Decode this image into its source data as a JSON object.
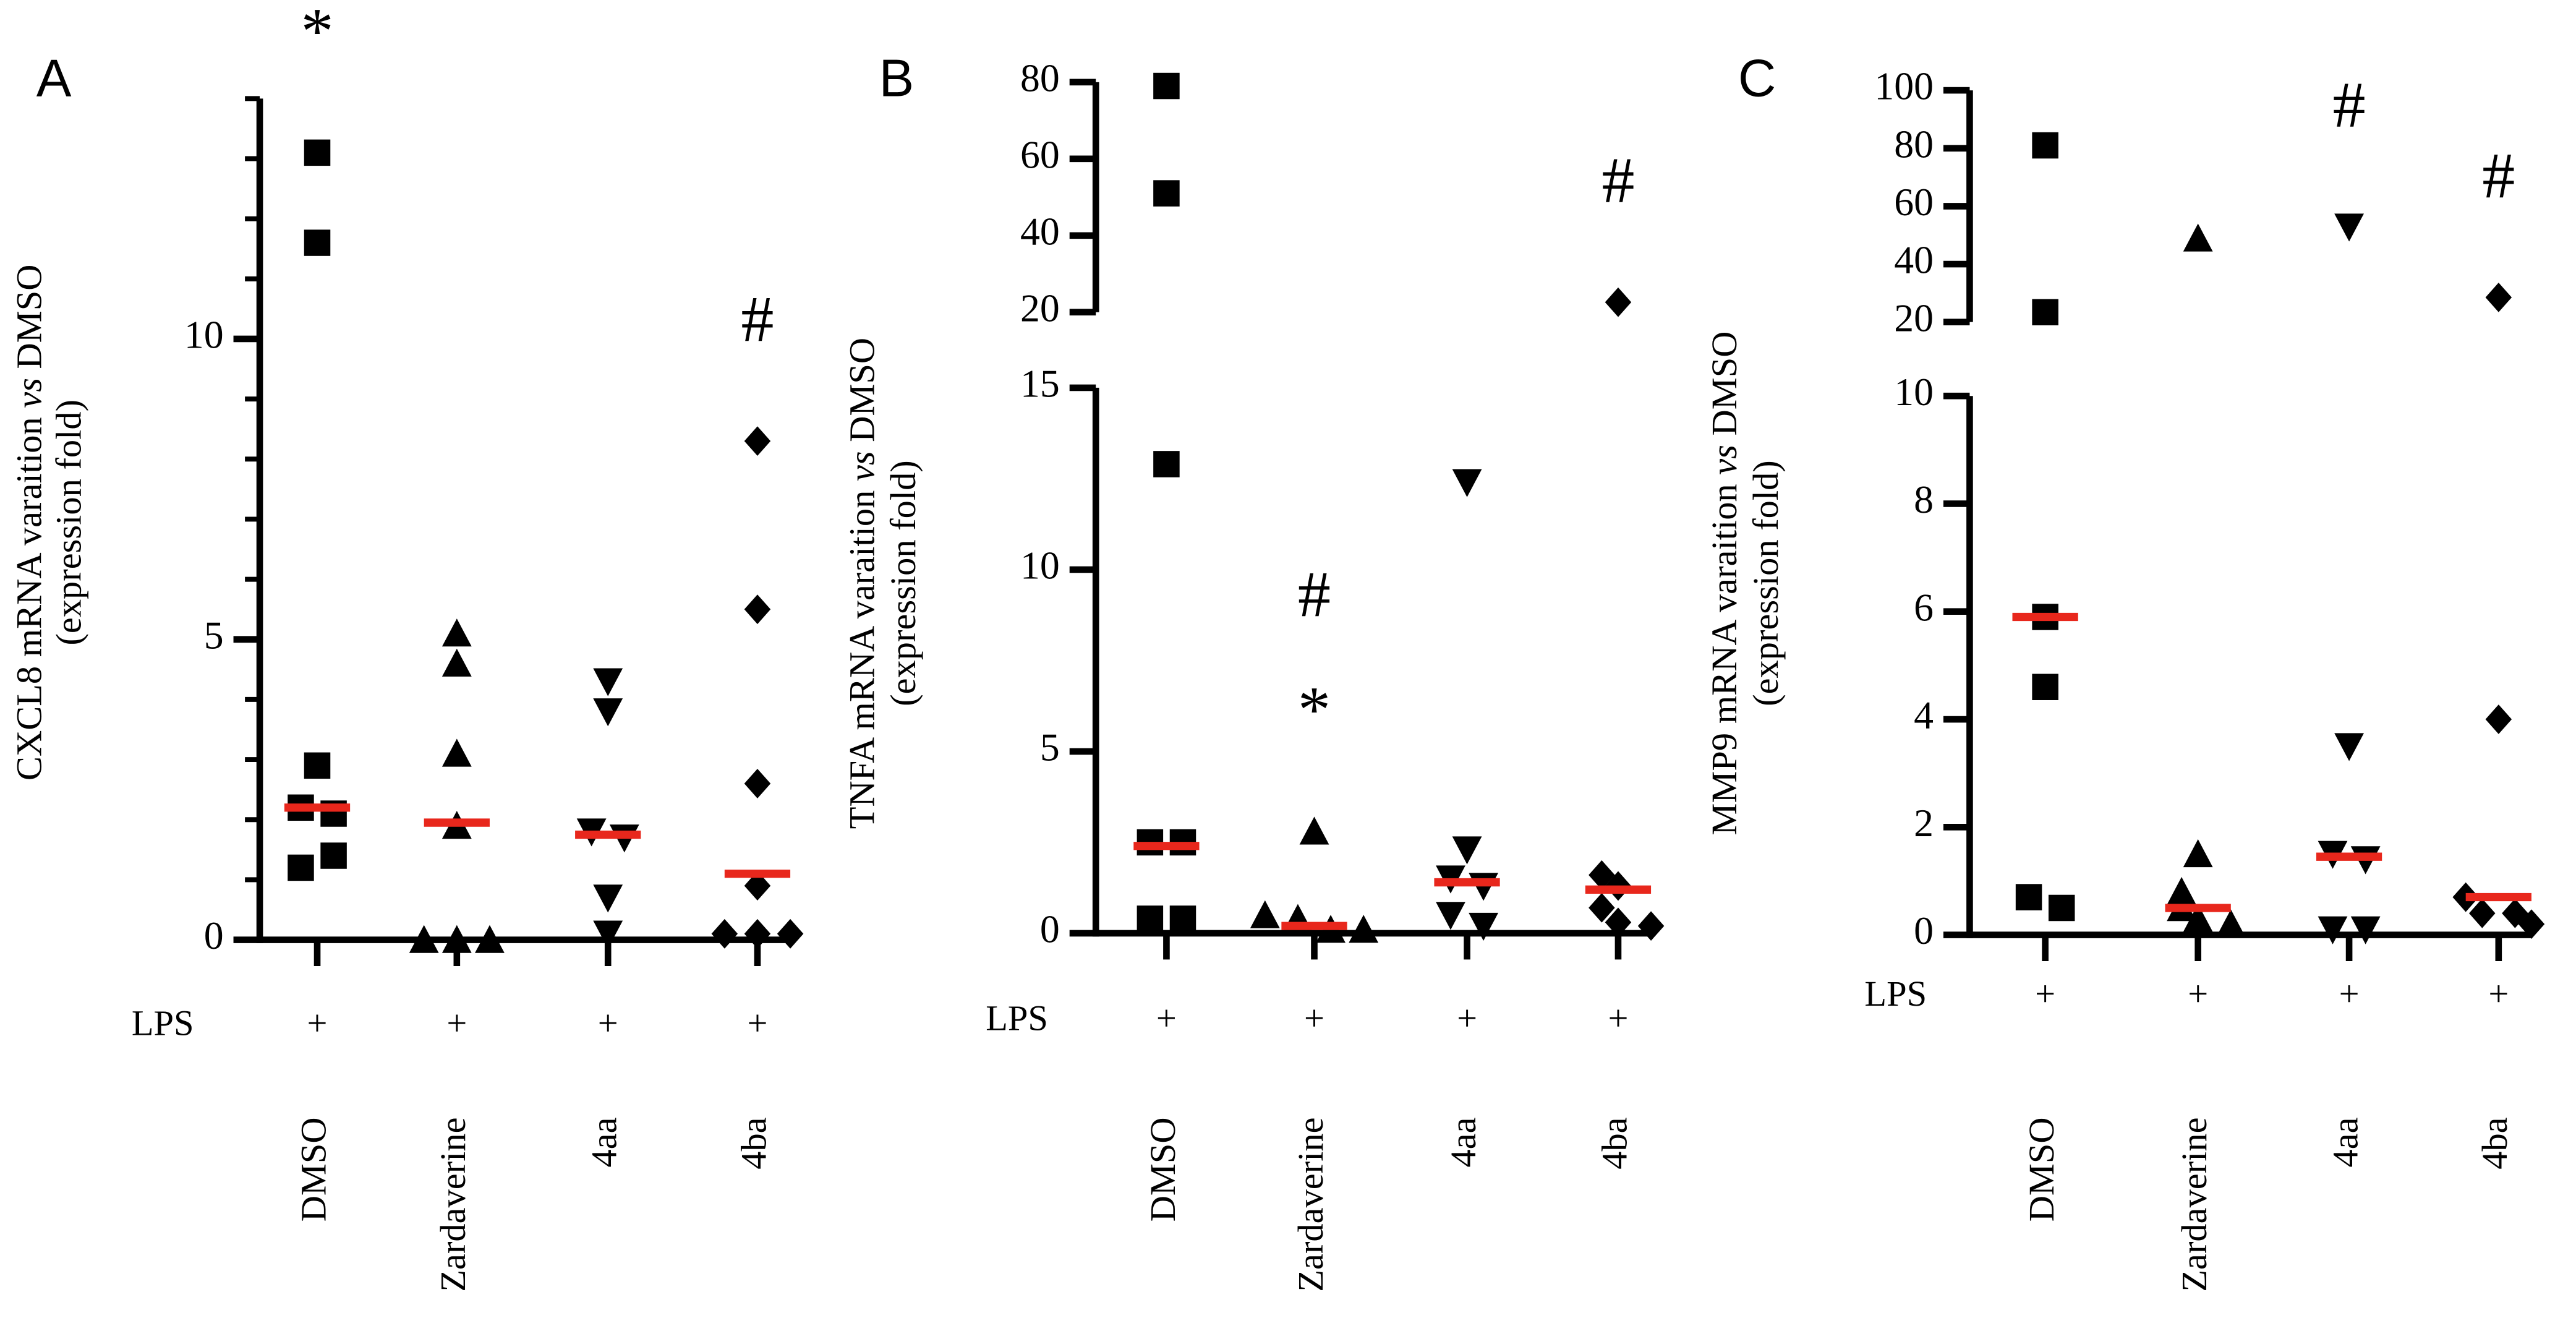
{
  "chart_data": [
    {
      "type": "dot",
      "panel": "A",
      "ylabel": [
        "CXCL8 mRNA varaition ",
        "vs",
        " DMSO"
      ],
      "ylabel2": "(expression fold)",
      "categories": [
        "DMSO",
        "Zardaverine",
        "4aa",
        "4ba"
      ],
      "row_label": "LPS",
      "row_values": [
        "+",
        "+",
        "+",
        "+"
      ],
      "markers": [
        "square",
        "triangle-up",
        "triangle-down",
        "diamond"
      ],
      "color": "#000000",
      "median_color": "#e8271c",
      "values": [
        [
          13.1,
          11.6,
          2.9,
          2.2,
          2.1,
          1.2,
          1.4
        ],
        [
          5.1,
          4.6,
          3.1,
          1.9,
          0,
          0,
          0
        ],
        [
          4.3,
          3.8,
          1.8,
          1.7,
          0.7,
          0.1
        ],
        [
          8.3,
          5.5,
          2.6,
          0.9,
          0.1,
          0.1,
          0.1
        ]
      ],
      "medians": [
        2.2,
        1.95,
        1.75,
        1.1
      ],
      "ylim": [
        0,
        14
      ],
      "yticks": [
        0,
        5,
        10
      ],
      "yminor": 1,
      "annotations": [
        [
          "*"
        ],
        [],
        [],
        [
          "#"
        ]
      ]
    },
    {
      "type": "dot",
      "panel": "B",
      "ylabel": [
        "TNFA mRNA varaition ",
        "vs",
        " DMSO"
      ],
      "ylabel2": "(expression fold)",
      "categories": [
        "DMSO",
        "Zardaverine",
        "4aa",
        "4ba"
      ],
      "row_label": "LPS",
      "row_values": [
        "+",
        "+",
        "+",
        "+"
      ],
      "markers": [
        "square",
        "triangle-up",
        "triangle-down",
        "diamond"
      ],
      "color": "#000000",
      "median_color": "#e8271c",
      "values": [
        [
          79,
          51,
          12.9,
          2.5,
          2.5,
          0.4,
          0.4
        ],
        [
          2.8,
          0.5,
          0.4,
          0.1,
          0.1
        ],
        [
          12.4,
          2.3,
          1.5,
          1.3,
          0.5,
          0.2
        ],
        [
          22.6,
          1.6,
          1.3,
          0.7,
          0.3,
          0.2
        ]
      ],
      "medians": [
        2.4,
        0.2,
        1.4,
        1.2
      ],
      "ylim": [
        0,
        15
      ],
      "yticks": [
        0,
        5,
        10,
        15
      ],
      "ylim_upper": [
        20,
        80
      ],
      "yticks_upper": [
        20,
        40,
        60,
        80
      ],
      "annotations": [
        [],
        [
          "*",
          "#"
        ],
        [],
        [
          "#"
        ]
      ]
    },
    {
      "type": "dot",
      "panel": "C",
      "ylabel": [
        "MMP9 mRNA varaition ",
        "vs",
        " DMSO"
      ],
      "ylabel2": "(expression fold)",
      "categories": [
        "DMSO",
        "Zardaverine",
        "4aa",
        "4ba"
      ],
      "row_label": "LPS",
      "row_values": [
        "+",
        "+",
        "+",
        "+"
      ],
      "markers": [
        "square",
        "triangle-up",
        "triangle-down",
        "diamond"
      ],
      "color": "#000000",
      "median_color": "#e8271c",
      "values": [
        [
          81,
          23.4,
          5.9,
          4.6,
          0.7,
          0.5
        ],
        [
          48.9,
          1.5,
          0.8,
          0.5,
          0.3,
          0.2
        ],
        [
          52.9,
          3.5,
          1.5,
          1.4,
          0.1,
          0.1
        ],
        [
          28.5,
          4.0,
          0.7,
          0.4,
          0.4,
          0.2
        ]
      ],
      "medians": [
        5.9,
        0.5,
        1.45,
        0.7
      ],
      "ylim": [
        0,
        10
      ],
      "yticks": [
        0,
        2,
        4,
        6,
        8,
        10
      ],
      "ylim_upper": [
        20,
        100
      ],
      "yticks_upper": [
        20,
        40,
        60,
        80,
        100
      ],
      "annotations": [
        [],
        [],
        [
          "#"
        ],
        [
          "#"
        ]
      ]
    }
  ]
}
